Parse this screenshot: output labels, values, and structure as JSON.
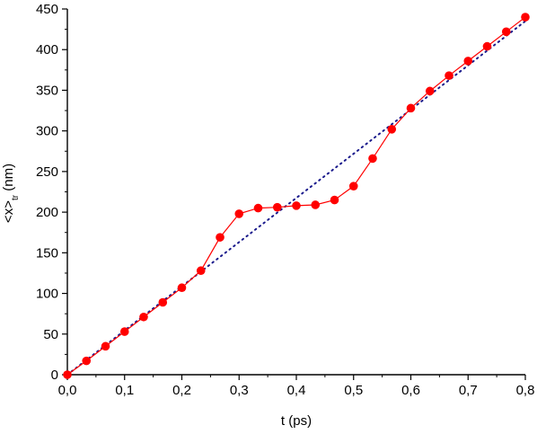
{
  "chart_data": {
    "type": "scatter",
    "title": "",
    "xlabel": "t (ps)",
    "ylabel": {
      "main": "<x>",
      "subscript": "tr",
      "unit": " (nm)"
    },
    "xlim": [
      0,
      0.8
    ],
    "ylim": [
      0,
      450
    ],
    "x_ticks": [
      "0,0",
      "0,1",
      "0,2",
      "0,3",
      "0,4",
      "0,5",
      "0,6",
      "0,7",
      "0,8"
    ],
    "y_ticks": [
      "0",
      "50",
      "100",
      "150",
      "200",
      "250",
      "300",
      "350",
      "400",
      "450"
    ],
    "grid": false,
    "legend": "none",
    "series": [
      {
        "style": "line+markers",
        "color": "#ff0000",
        "x": [
          0.0,
          0.0333,
          0.0667,
          0.1,
          0.1333,
          0.1667,
          0.2,
          0.2333,
          0.2667,
          0.3,
          0.3333,
          0.3667,
          0.4,
          0.4333,
          0.4667,
          0.5,
          0.5333,
          0.5667,
          0.6,
          0.6333,
          0.6667,
          0.7,
          0.7333,
          0.7667,
          0.8
        ],
        "y": [
          0,
          17,
          35,
          53,
          71,
          89,
          107,
          128,
          169,
          198,
          205,
          206,
          208,
          209,
          215,
          232,
          266,
          302,
          328,
          349,
          368,
          386,
          404,
          422,
          440
        ]
      },
      {
        "style": "dotted",
        "color": "#1a1a8c",
        "x": [
          0.0,
          0.8
        ],
        "y": [
          0,
          435
        ]
      }
    ]
  }
}
